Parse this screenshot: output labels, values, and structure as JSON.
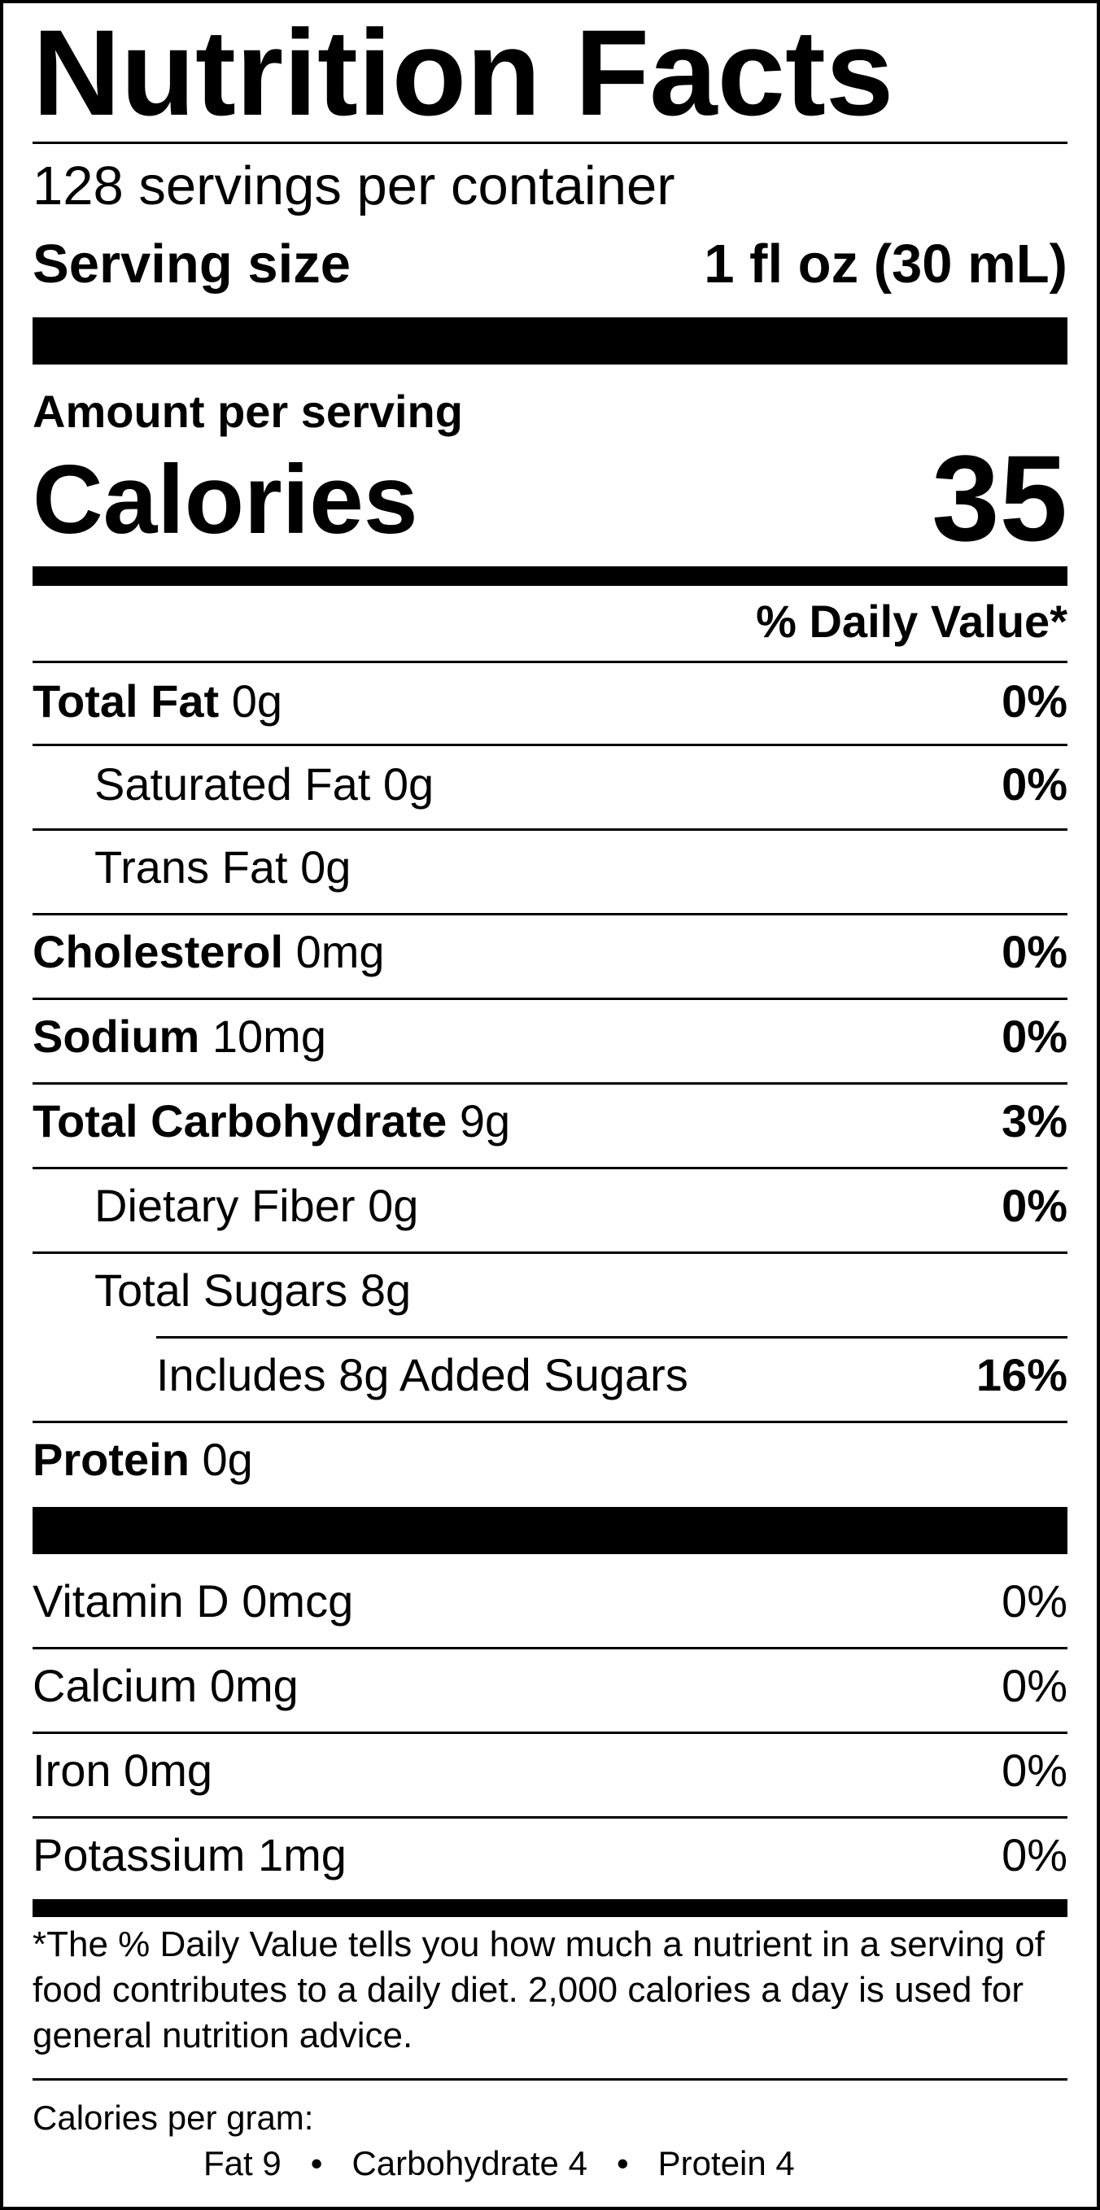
{
  "title": "Nutrition Facts",
  "servings_per_container": "128 servings per container",
  "serving_size": {
    "label": "Serving size",
    "value": "1 fl oz (30 mL)"
  },
  "amount_per_serving": "Amount per serving",
  "calories": {
    "label": "Calories",
    "value": "35"
  },
  "daily_value_header": "% Daily Value*",
  "nutrients": [
    {
      "name": "Total Fat",
      "amount": "0g",
      "dv": "0%"
    },
    {
      "name": "Saturated Fat",
      "amount": "0g",
      "dv": "0%"
    },
    {
      "name": "Trans Fat",
      "amount": "0g",
      "dv": ""
    },
    {
      "name": "Cholesterol",
      "amount": "0mg",
      "dv": "0%"
    },
    {
      "name": "Sodium",
      "amount": "10mg",
      "dv": "0%"
    },
    {
      "name": "Total Carbohydrate",
      "amount": "9g",
      "dv": "3%"
    },
    {
      "name": "Dietary Fiber",
      "amount": "0g",
      "dv": "0%"
    },
    {
      "name": "Total Sugars",
      "amount": "8g",
      "dv": ""
    },
    {
      "name": "Includes 8g Added Sugars",
      "amount": "",
      "dv": "16%"
    },
    {
      "name": "Protein",
      "amount": "0g",
      "dv": ""
    }
  ],
  "vitamins": [
    {
      "name": "Vitamin D 0mcg",
      "dv": "0%"
    },
    {
      "name": "Calcium 0mg",
      "dv": "0%"
    },
    {
      "name": "Iron 0mg",
      "dv": "0%"
    },
    {
      "name": "Potassium 1mg",
      "dv": "0%"
    }
  ],
  "footnote": "*The % Daily Value tells you how much a nutrient in a serving of food contributes to a daily diet. 2,000 calories a day is used for general nutrition advice.",
  "calories_per_gram": {
    "label": "Calories per gram:",
    "fat": "Fat 9",
    "carbohydrate": "Carbohydrate 4",
    "protein": "Protein 4",
    "separator": "•"
  }
}
